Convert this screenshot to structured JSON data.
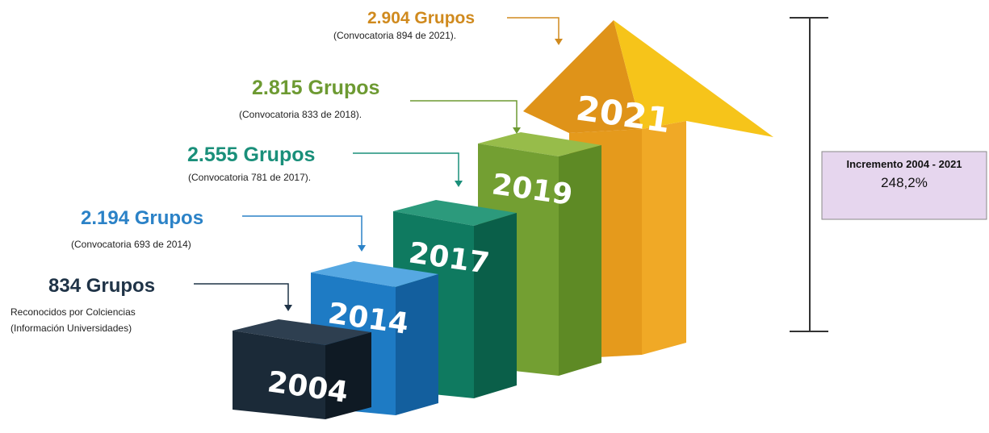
{
  "labels": [
    {
      "count": "2.904 Grupos",
      "note": [
        "(Convocatoria 894 de 2021)."
      ]
    },
    {
      "count": "2.815 Grupos",
      "note": [
        "(Convocatoria 833 de 2018)."
      ]
    },
    {
      "count": "2.555 Grupos",
      "note": [
        "(Convocatoria 781 de 2017)."
      ]
    },
    {
      "count": "2.194 Grupos",
      "note": [
        "(Convocatoria 693 de 2014)"
      ]
    },
    {
      "count": "834 Grupos",
      "note": [
        "Reconocidos por Colciencias",
        "(Información Universidades)"
      ]
    }
  ],
  "blocks": [
    "2004",
    "2014",
    "2017",
    "2019",
    "2021"
  ],
  "increment": {
    "title": "Incremento 2004 - 2021",
    "value": "248,2%"
  }
}
